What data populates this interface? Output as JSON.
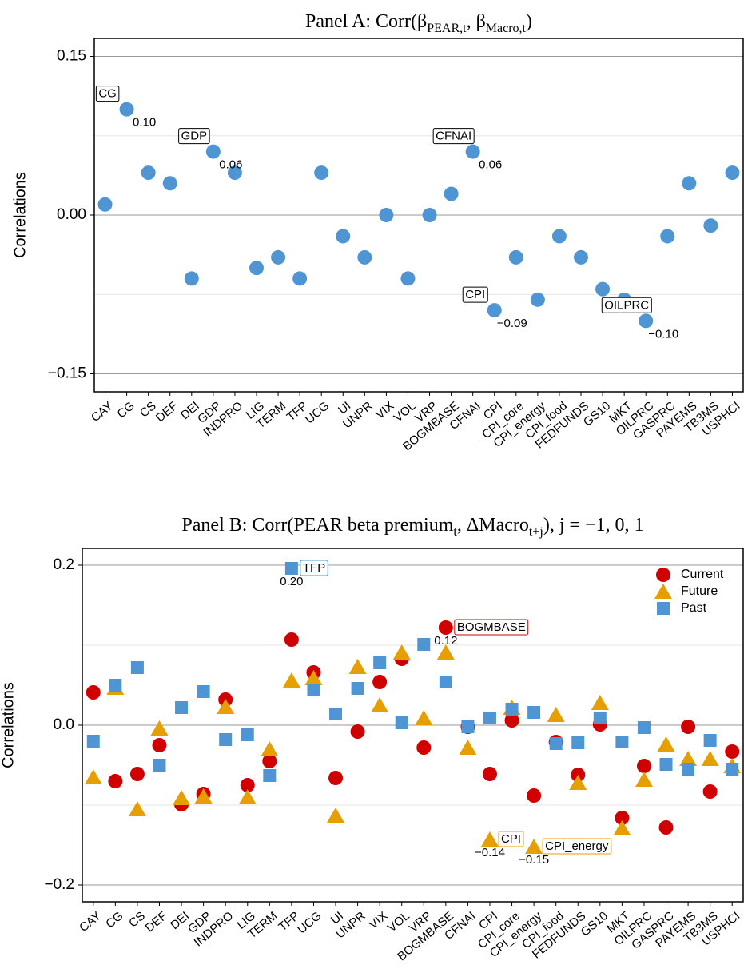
{
  "chart_data": [
    {
      "type": "scatter",
      "title": [
        {
          "text": "Panel A: Corr("
        },
        {
          "text": "β"
        },
        {
          "text": "PEAR,t",
          "sub": true
        },
        {
          "text": ", "
        },
        {
          "text": "β"
        },
        {
          "text": "Macro,t",
          "sub": true
        },
        {
          "text": ")"
        }
      ],
      "y_label": "Correlations",
      "categories": [
        "CAY",
        "CG",
        "CS",
        "DEF",
        "DEI",
        "GDP",
        "INDPRO",
        "LIG",
        "TERM",
        "TFP",
        "UCG",
        "UI",
        "UNPR",
        "VIX",
        "VOL",
        "VRP",
        "BOGMBASE",
        "CFNAI",
        "CPI",
        "CPI_core",
        "CPI_energy",
        "CPI_food",
        "FEDFUNDS",
        "GS10",
        "MKT",
        "OILPRC",
        "GASPRC",
        "PAYEMS",
        "TB3MS",
        "USPHCI"
      ],
      "series": [
        {
          "color": "#4f95d3",
          "marker": "circle",
          "values": [
            0.01,
            0.1,
            0.04,
            0.03,
            -0.06,
            0.06,
            0.04,
            -0.05,
            -0.04,
            -0.06,
            0.04,
            -0.02,
            -0.04,
            0.0,
            -0.06,
            0.0,
            0.02,
            0.06,
            -0.09,
            -0.04,
            -0.08,
            -0.02,
            -0.04,
            -0.07,
            -0.08,
            -0.1,
            -0.02,
            0.03,
            -0.01,
            0.04
          ],
          "value_labels": [
            null,
            "0.10",
            null,
            null,
            null,
            "0.06",
            null,
            null,
            null,
            null,
            null,
            null,
            null,
            null,
            null,
            null,
            null,
            "0.06",
            "−0.09",
            null,
            null,
            null,
            null,
            null,
            null,
            "−0.10",
            null,
            null,
            null,
            null
          ],
          "label_color": "#000000"
        }
      ],
      "ylim": [
        -0.167,
        0.167
      ],
      "yticks": [
        {
          "value": -0.15,
          "label": "−0.15"
        },
        {
          "value": 0,
          "label": "0.00"
        },
        {
          "value": 0.15,
          "label": "0.15"
        }
      ],
      "minor_yticks": [
        -0.075,
        0.075
      ],
      "grid": true
    },
    {
      "type": "scatter",
      "title": [
        {
          "text": "Panel B: Corr(PEAR beta premium"
        },
        {
          "text": "t",
          "sub": true
        },
        {
          "text": ", ΔMacro"
        },
        {
          "text": "t+j",
          "sub": true
        },
        {
          "text": "),  j = −1, 0, 1"
        }
      ],
      "y_label": "Correlations",
      "categories": [
        "CAY",
        "CG",
        "CS",
        "DEF",
        "DEI",
        "GDP",
        "INDPRO",
        "LIG",
        "TERM",
        "TFP",
        "UCG",
        "UI",
        "UNPR",
        "VIX",
        "VOL",
        "VRP",
        "BOGMBASE",
        "CFNAI",
        "CPI",
        "CPI_core",
        "CPI_energy",
        "CPI_food",
        "FEDFUNDS",
        "GS10",
        "MKT",
        "OILPRC",
        "GASPRC",
        "PAYEMS",
        "TB3MS",
        "USPHCI"
      ],
      "series": [
        {
          "name": "Current",
          "color": "#d00000",
          "marker": "circle",
          "values": [
            0.041,
            -0.07,
            -0.061,
            -0.025,
            -0.099,
            -0.086,
            0.032,
            -0.075,
            -0.045,
            0.107,
            0.066,
            -0.066,
            -0.008,
            0.054,
            0.083,
            -0.028,
            0.122,
            -0.002,
            -0.061,
            0.006,
            -0.088,
            -0.021,
            -0.062,
            0.001,
            -0.116,
            -0.051,
            -0.128,
            -0.002,
            -0.083,
            -0.033
          ],
          "value_labels": [
            null,
            null,
            null,
            null,
            null,
            null,
            null,
            null,
            null,
            null,
            null,
            null,
            null,
            null,
            null,
            null,
            "0.12",
            null,
            null,
            null,
            null,
            null,
            null,
            null,
            null,
            null,
            null,
            null,
            null,
            null
          ]
        },
        {
          "name": "Future",
          "color": "#e69f00",
          "marker": "triangle",
          "values": [
            -0.065,
            0.047,
            -0.105,
            -0.004,
            -0.091,
            -0.089,
            0.023,
            -0.09,
            -0.03,
            0.056,
            0.059,
            -0.113,
            0.073,
            0.025,
            0.091,
            0.009,
            0.091,
            -0.028,
            -0.143,
            0.022,
            -0.152,
            0.013,
            -0.072,
            0.028,
            -0.129,
            -0.068,
            -0.024,
            -0.042,
            -0.042,
            -0.051
          ],
          "value_labels": [
            null,
            null,
            null,
            null,
            null,
            null,
            null,
            null,
            null,
            null,
            null,
            null,
            null,
            null,
            null,
            null,
            null,
            null,
            "−0.14",
            null,
            "−0.15",
            null,
            null,
            null,
            null,
            null,
            null,
            null,
            null,
            null
          ]
        },
        {
          "name": "Past",
          "color": "#4f95d3",
          "marker": "square",
          "values": [
            -0.02,
            0.05,
            0.072,
            -0.05,
            0.022,
            0.042,
            -0.018,
            -0.012,
            -0.063,
            0.196,
            0.044,
            0.014,
            0.046,
            0.078,
            0.003,
            0.101,
            0.054,
            -0.002,
            0.009,
            0.02,
            0.016,
            -0.023,
            -0.022,
            0.009,
            -0.021,
            -0.003,
            -0.049,
            -0.055,
            -0.019,
            -0.055
          ],
          "value_labels": [
            null,
            null,
            null,
            null,
            null,
            null,
            null,
            null,
            null,
            "0.20",
            null,
            null,
            null,
            null,
            null,
            null,
            null,
            null,
            null,
            null,
            null,
            null,
            null,
            null,
            null,
            null,
            null,
            null,
            null,
            null
          ]
        }
      ],
      "ylim": [
        -0.221,
        0.221
      ],
      "yticks": [
        {
          "value": -0.2,
          "label": "−0.2"
        },
        {
          "value": 0,
          "label": "0.0"
        },
        0.2
      ],
      "minor_yticks": [
        -0.1,
        0.1
      ],
      "grid": true,
      "legend": "top-right"
    }
  ]
}
